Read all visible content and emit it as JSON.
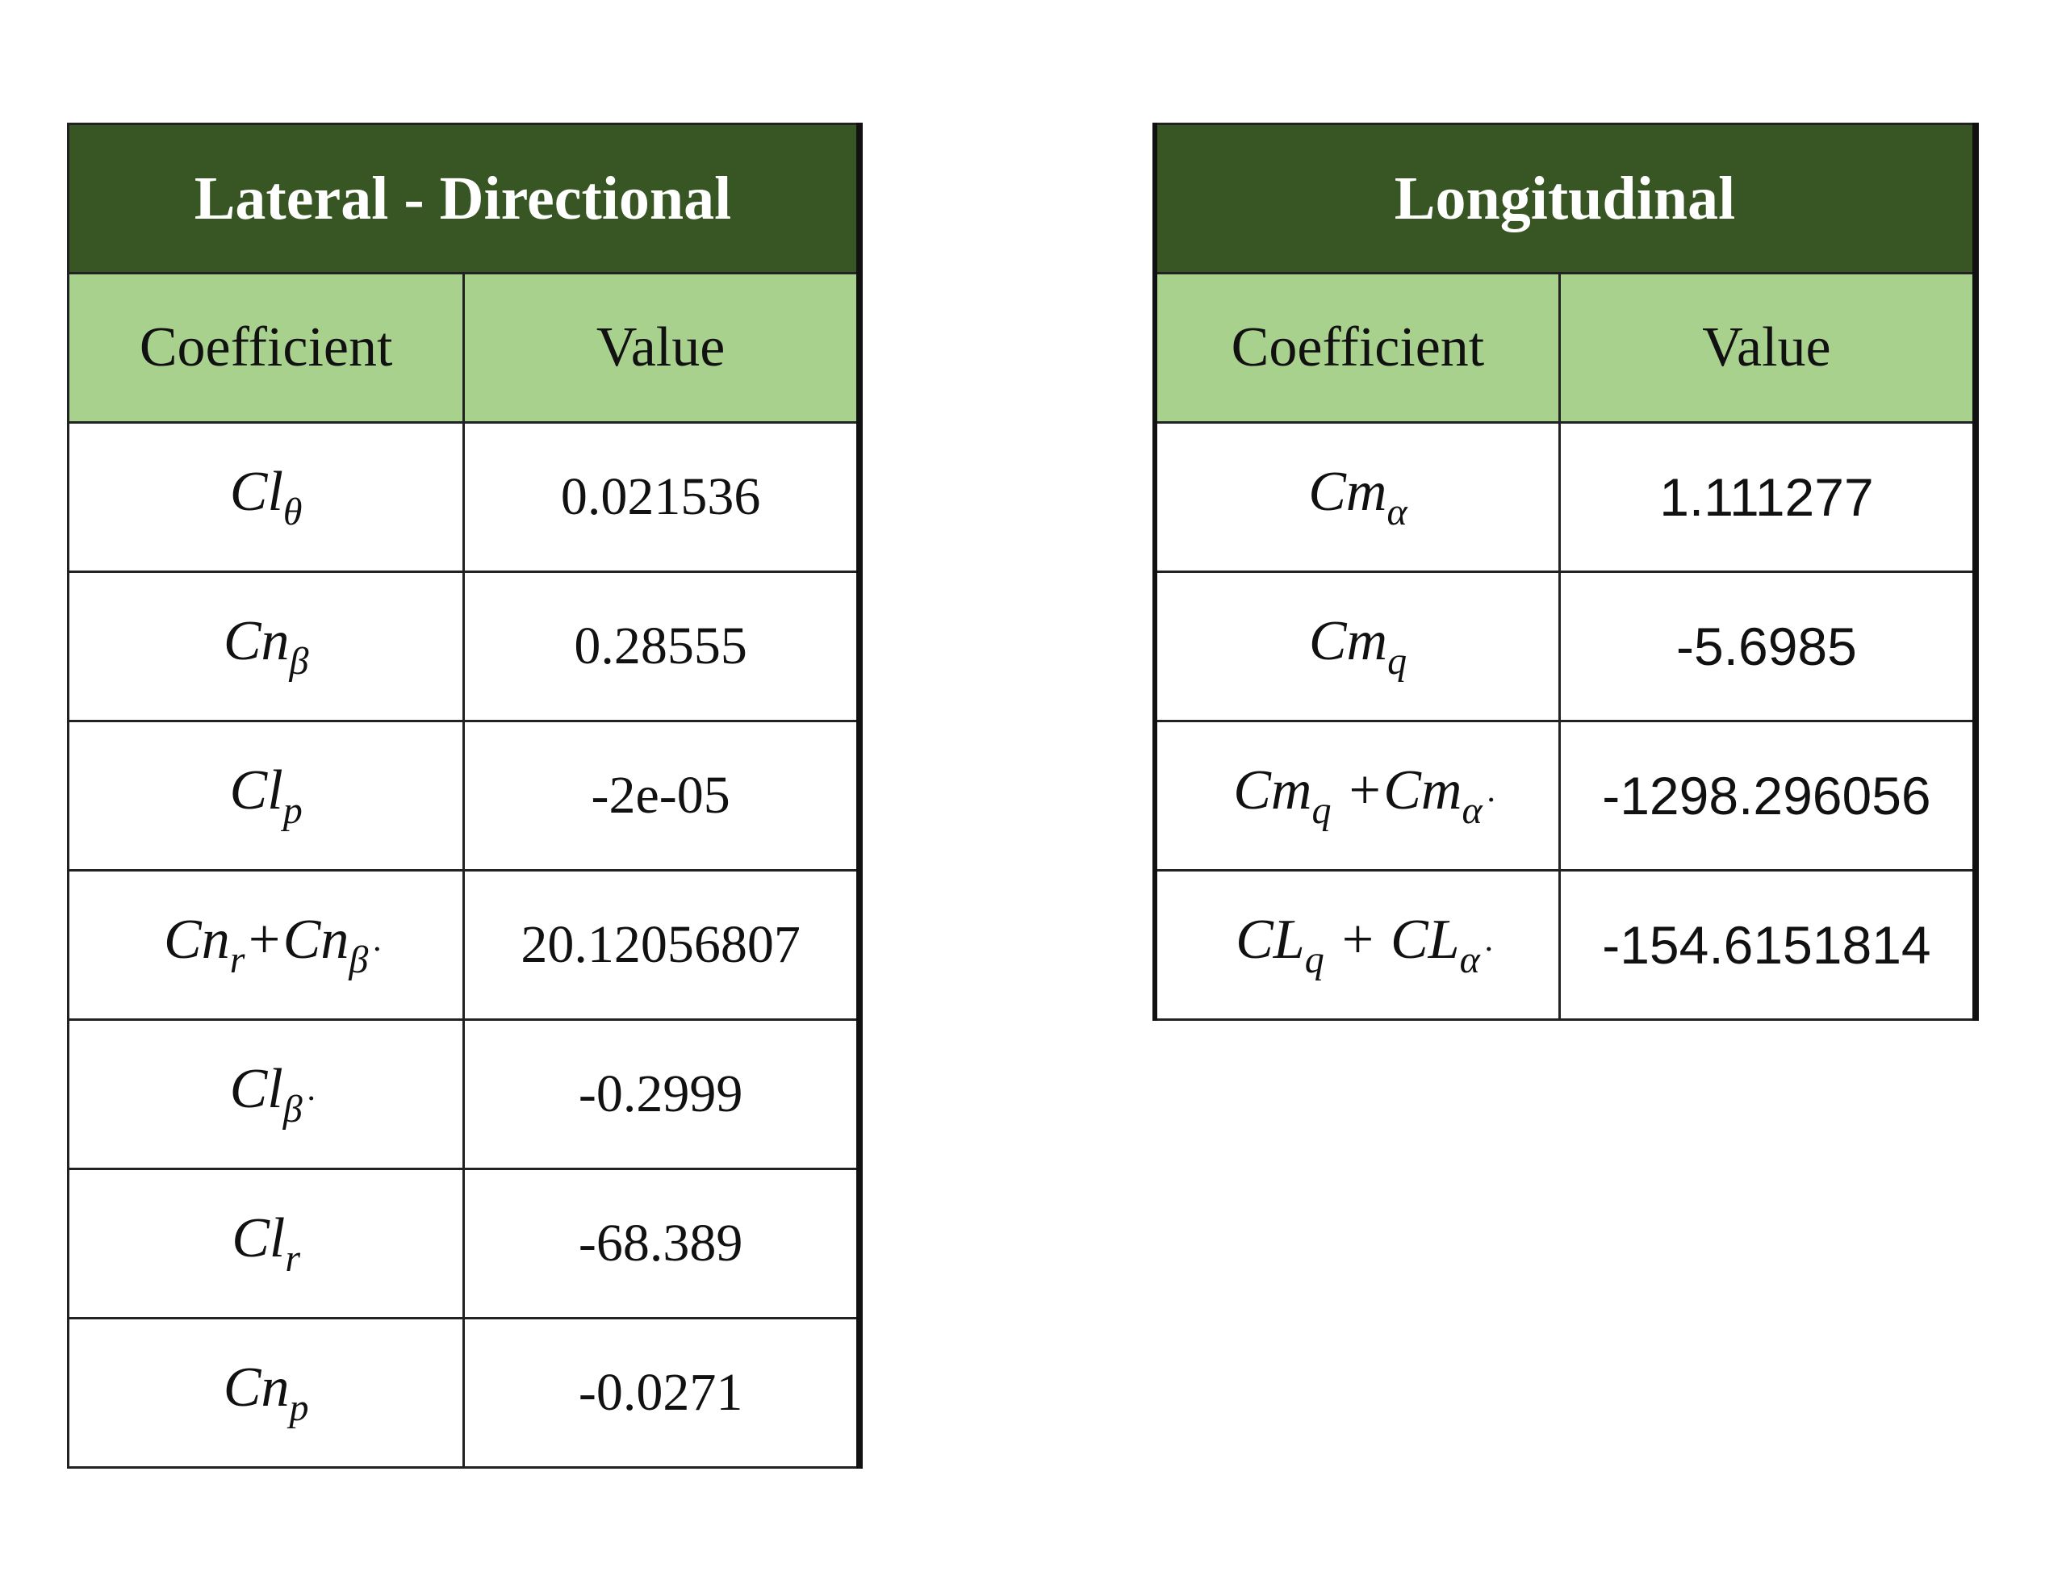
{
  "tables": [
    {
      "title": "Lateral - Directional",
      "columns": [
        "Coefficient",
        "Value"
      ],
      "rows": [
        [
          [
            "Cl",
            "θ"
          ],
          "0.021536"
        ],
        [
          [
            "Cn",
            "β"
          ],
          "0.28555"
        ],
        [
          [
            "Cl",
            "p"
          ],
          "-2e-05"
        ],
        [
          [
            "Cn",
            "r",
            "+Cn",
            "β̇"
          ],
          "20.12056807"
        ],
        [
          [
            "Cl",
            "β̇"
          ],
          "-0.2999"
        ],
        [
          [
            "Cl",
            "r"
          ],
          "-68.389"
        ],
        [
          [
            "Cn",
            "p"
          ],
          "-0.0271"
        ]
      ]
    },
    {
      "title": "Longitudinal",
      "columns": [
        "Coefficient",
        "Value"
      ],
      "rows": [
        [
          [
            "Cm",
            "α"
          ],
          "1.111277"
        ],
        [
          [
            "Cm",
            "q"
          ],
          "-5.6985"
        ],
        [
          [
            "Cm",
            "q",
            " +Cm",
            "α̇"
          ],
          "-1298.296056"
        ],
        [
          [
            "CL",
            "q",
            " + CL",
            "α̇"
          ],
          "-154.6151814"
        ]
      ]
    }
  ]
}
